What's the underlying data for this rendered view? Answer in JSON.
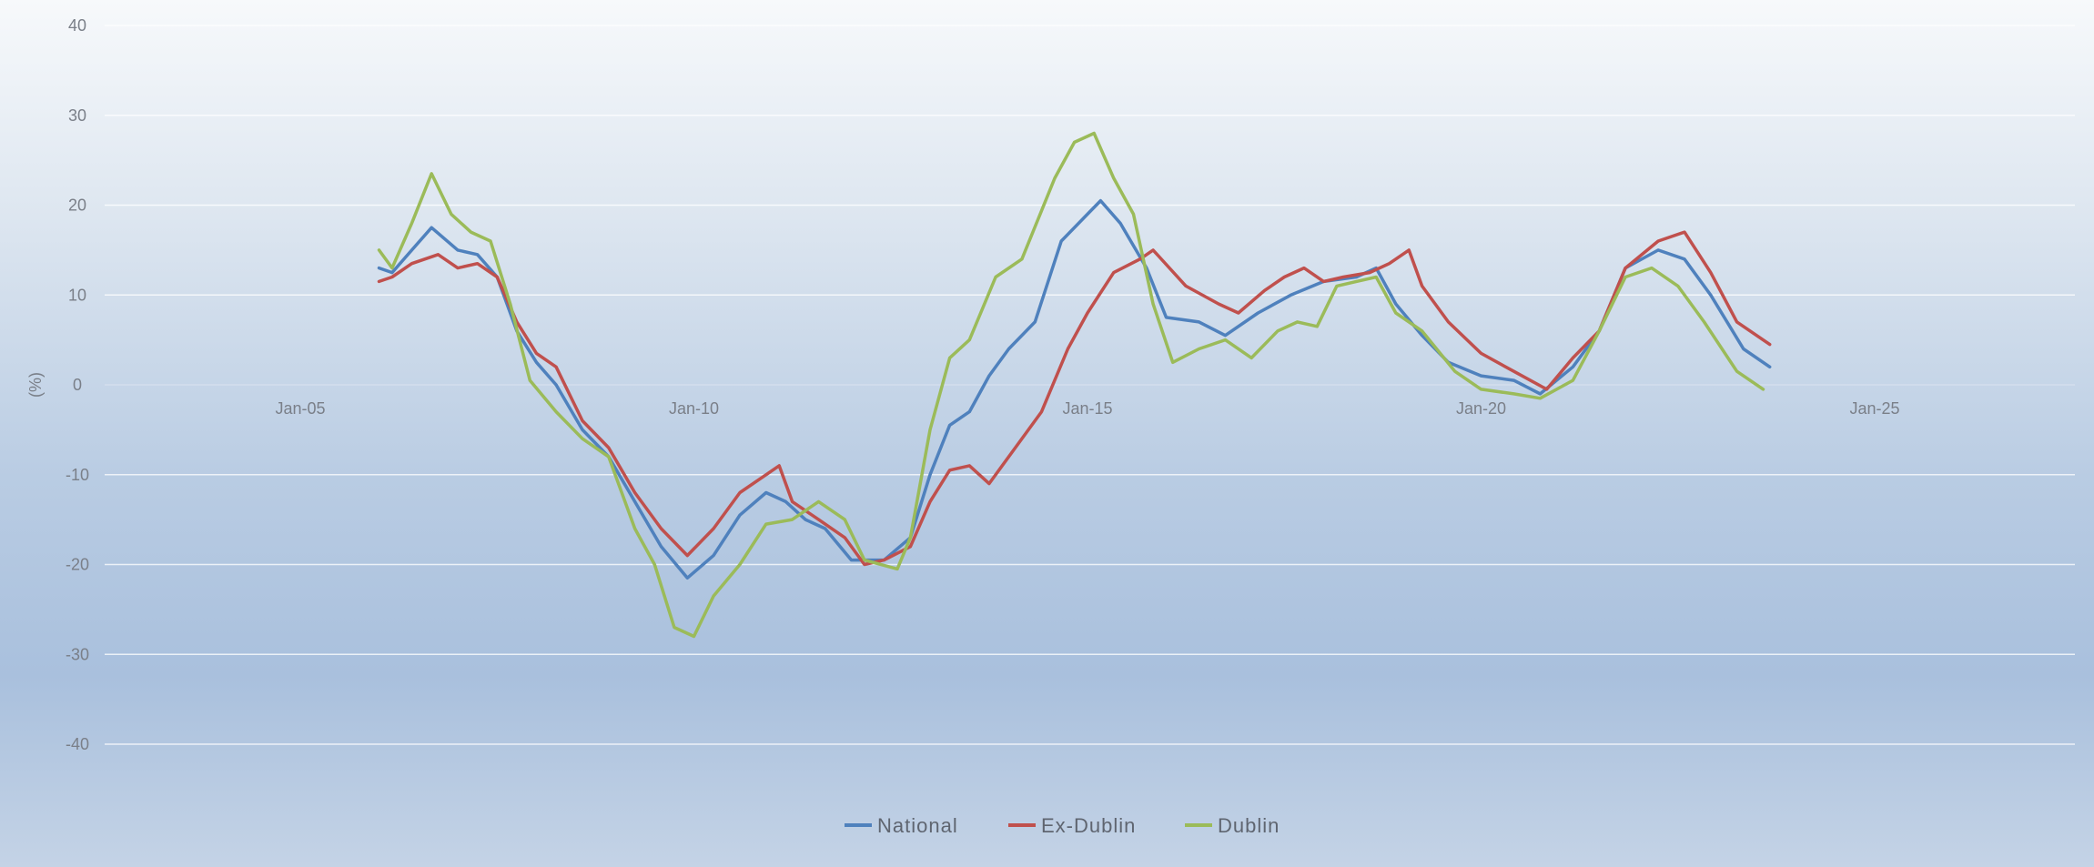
{
  "chart_data": {
    "type": "line",
    "title": "",
    "xlabel": "",
    "ylabel": "(%)",
    "ylim": [
      -40,
      40
    ],
    "yticks": [
      40,
      30,
      20,
      10,
      0,
      -10,
      -20,
      -30,
      -40
    ],
    "xlim": [
      "2000-01",
      "2027-01"
    ],
    "xticks": [
      {
        "date": "2005-01",
        "label": "Jan-05"
      },
      {
        "date": "2010-01",
        "label": "Jan-10"
      },
      {
        "date": "2015-01",
        "label": "Jan-15"
      },
      {
        "date": "2020-01",
        "label": "Jan-20"
      },
      {
        "date": "2025-01",
        "label": "Jan-25"
      }
    ],
    "grid": true,
    "legend": "bottom-center",
    "series": [
      {
        "name": "National",
        "color": "#4f81bd",
        "points": [
          [
            "2006-01",
            13
          ],
          [
            "2006-03",
            12.5
          ],
          [
            "2006-06",
            15
          ],
          [
            "2006-09",
            17.5
          ],
          [
            "2007-01",
            15
          ],
          [
            "2007-04",
            14.5
          ],
          [
            "2007-07",
            12
          ],
          [
            "2007-10",
            6
          ],
          [
            "2008-01",
            2.5
          ],
          [
            "2008-04",
            0
          ],
          [
            "2008-08",
            -5
          ],
          [
            "2008-12",
            -8
          ],
          [
            "2009-04",
            -13
          ],
          [
            "2009-08",
            -18
          ],
          [
            "2009-12",
            -21.5
          ],
          [
            "2010-04",
            -19
          ],
          [
            "2010-08",
            -14.5
          ],
          [
            "2010-12",
            -12
          ],
          [
            "2011-03",
            -13
          ],
          [
            "2011-06",
            -15
          ],
          [
            "2011-09",
            -16
          ],
          [
            "2012-01",
            -19.5
          ],
          [
            "2012-06",
            -19.5
          ],
          [
            "2012-10",
            -17
          ],
          [
            "2013-01",
            -10
          ],
          [
            "2013-04",
            -4.5
          ],
          [
            "2013-07",
            -3
          ],
          [
            "2013-10",
            1
          ],
          [
            "2014-01",
            4
          ],
          [
            "2014-05",
            7
          ],
          [
            "2014-09",
            16
          ],
          [
            "2015-01",
            19
          ],
          [
            "2015-03",
            20.5
          ],
          [
            "2015-06",
            18
          ],
          [
            "2015-10",
            13
          ],
          [
            "2016-01",
            7.5
          ],
          [
            "2016-06",
            7
          ],
          [
            "2016-10",
            5.5
          ],
          [
            "2017-03",
            8
          ],
          [
            "2017-08",
            10
          ],
          [
            "2018-01",
            11.5
          ],
          [
            "2018-06",
            12
          ],
          [
            "2018-09",
            13
          ],
          [
            "2018-12",
            9
          ],
          [
            "2019-04",
            5.5
          ],
          [
            "2019-08",
            2.5
          ],
          [
            "2020-01",
            1
          ],
          [
            "2020-06",
            0.5
          ],
          [
            "2020-10",
            -1
          ],
          [
            "2021-03",
            2
          ],
          [
            "2021-07",
            6
          ],
          [
            "2021-11",
            13
          ],
          [
            "2022-04",
            15
          ],
          [
            "2022-08",
            14
          ],
          [
            "2022-12",
            10
          ],
          [
            "2023-05",
            4
          ],
          [
            "2023-09",
            2
          ]
        ]
      },
      {
        "name": "Ex-Dublin",
        "color": "#c0504d",
        "points": [
          [
            "2006-01",
            11.5
          ],
          [
            "2006-03",
            12
          ],
          [
            "2006-06",
            13.5
          ],
          [
            "2006-10",
            14.5
          ],
          [
            "2007-01",
            13
          ],
          [
            "2007-04",
            13.5
          ],
          [
            "2007-07",
            12
          ],
          [
            "2007-10",
            7
          ],
          [
            "2008-01",
            3.5
          ],
          [
            "2008-04",
            2
          ],
          [
            "2008-08",
            -4
          ],
          [
            "2008-12",
            -7
          ],
          [
            "2009-04",
            -12
          ],
          [
            "2009-08",
            -16
          ],
          [
            "2009-12",
            -19
          ],
          [
            "2010-04",
            -16
          ],
          [
            "2010-08",
            -12
          ],
          [
            "2010-12",
            -10
          ],
          [
            "2011-02",
            -9
          ],
          [
            "2011-04",
            -13
          ],
          [
            "2011-08",
            -15
          ],
          [
            "2011-12",
            -17
          ],
          [
            "2012-03",
            -20
          ],
          [
            "2012-06",
            -19.5
          ],
          [
            "2012-10",
            -18
          ],
          [
            "2013-01",
            -13
          ],
          [
            "2013-04",
            -9.5
          ],
          [
            "2013-07",
            -9
          ],
          [
            "2013-10",
            -11
          ],
          [
            "2014-02",
            -7
          ],
          [
            "2014-06",
            -3
          ],
          [
            "2014-10",
            4
          ],
          [
            "2015-01",
            8
          ],
          [
            "2015-05",
            12.5
          ],
          [
            "2015-09",
            14
          ],
          [
            "2015-11",
            15
          ],
          [
            "2016-04",
            11
          ],
          [
            "2016-09",
            9
          ],
          [
            "2016-12",
            8
          ],
          [
            "2017-04",
            10.5
          ],
          [
            "2017-07",
            12
          ],
          [
            "2017-10",
            13
          ],
          [
            "2018-01",
            11.5
          ],
          [
            "2018-04",
            12
          ],
          [
            "2018-08",
            12.5
          ],
          [
            "2018-11",
            13.5
          ],
          [
            "2019-02",
            15
          ],
          [
            "2019-04",
            11
          ],
          [
            "2019-08",
            7
          ],
          [
            "2020-01",
            3.5
          ],
          [
            "2020-06",
            1.5
          ],
          [
            "2020-11",
            -0.5
          ],
          [
            "2021-03",
            3
          ],
          [
            "2021-07",
            6
          ],
          [
            "2021-11",
            13
          ],
          [
            "2022-04",
            16
          ],
          [
            "2022-08",
            17
          ],
          [
            "2022-12",
            12.5
          ],
          [
            "2023-04",
            7
          ],
          [
            "2023-09",
            4.5
          ]
        ]
      },
      {
        "name": "Dublin",
        "color": "#9bbb59",
        "points": [
          [
            "2006-01",
            15
          ],
          [
            "2006-03",
            13
          ],
          [
            "2006-06",
            18
          ],
          [
            "2006-09",
            23.5
          ],
          [
            "2006-12",
            19
          ],
          [
            "2007-03",
            17
          ],
          [
            "2007-06",
            16
          ],
          [
            "2007-09",
            9
          ],
          [
            "2007-12",
            0.5
          ],
          [
            "2008-04",
            -3
          ],
          [
            "2008-08",
            -6
          ],
          [
            "2008-12",
            -8
          ],
          [
            "2009-04",
            -16
          ],
          [
            "2009-07",
            -20
          ],
          [
            "2009-10",
            -27
          ],
          [
            "2010-01",
            -28
          ],
          [
            "2010-04",
            -23.5
          ],
          [
            "2010-08",
            -20
          ],
          [
            "2010-12",
            -15.5
          ],
          [
            "2011-04",
            -15
          ],
          [
            "2011-08",
            -13
          ],
          [
            "2011-12",
            -15
          ],
          [
            "2012-03",
            -19.5
          ],
          [
            "2012-08",
            -20.5
          ],
          [
            "2012-10",
            -17
          ],
          [
            "2013-01",
            -5
          ],
          [
            "2013-04",
            3
          ],
          [
            "2013-07",
            5
          ],
          [
            "2013-11",
            12
          ],
          [
            "2014-03",
            14
          ],
          [
            "2014-08",
            23
          ],
          [
            "2014-11",
            27
          ],
          [
            "2015-02",
            28
          ],
          [
            "2015-05",
            23
          ],
          [
            "2015-08",
            19
          ],
          [
            "2015-11",
            9
          ],
          [
            "2016-02",
            2.5
          ],
          [
            "2016-06",
            4
          ],
          [
            "2016-10",
            5
          ],
          [
            "2017-02",
            3
          ],
          [
            "2017-06",
            6
          ],
          [
            "2017-09",
            7
          ],
          [
            "2017-12",
            6.5
          ],
          [
            "2018-03",
            11
          ],
          [
            "2018-06",
            11.5
          ],
          [
            "2018-09",
            12
          ],
          [
            "2018-12",
            8
          ],
          [
            "2019-04",
            6
          ],
          [
            "2019-09",
            1.5
          ],
          [
            "2020-01",
            -0.5
          ],
          [
            "2020-06",
            -1
          ],
          [
            "2020-10",
            -1.5
          ],
          [
            "2021-03",
            0.5
          ],
          [
            "2021-07",
            6
          ],
          [
            "2021-11",
            12
          ],
          [
            "2022-03",
            13
          ],
          [
            "2022-07",
            11
          ],
          [
            "2022-11",
            7
          ],
          [
            "2023-04",
            1.5
          ],
          [
            "2023-08",
            -0.5
          ]
        ]
      }
    ]
  }
}
